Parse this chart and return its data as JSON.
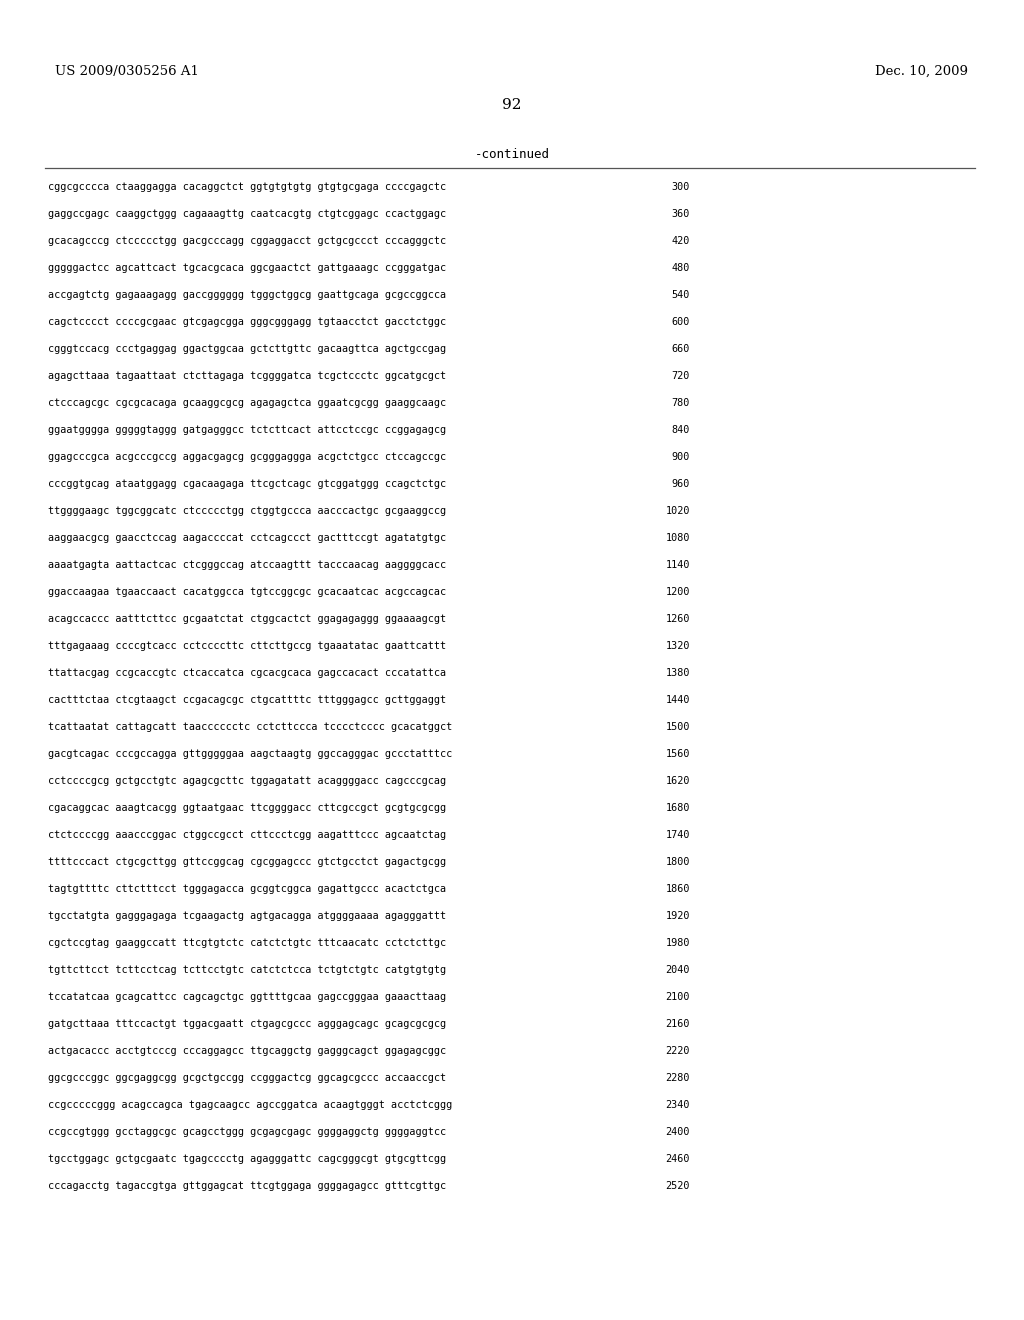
{
  "patent_number": "US 2009/0305256 A1",
  "date": "Dec. 10, 2009",
  "page_number": "92",
  "continued_label": "-continued",
  "background_color": "#ffffff",
  "text_color": "#000000",
  "sequence_lines": [
    [
      "cggcgcccca ctaaggagga cacaggctct ggtgtgtgtg gtgtgcgaga ccccgagctc",
      "300"
    ],
    [
      "gaggccgagc caaggctggg cagaaagttg caatcacgtg ctgtcggagc ccactggagc",
      "360"
    ],
    [
      "gcacagcccg ctccccctgg gacgcccagg cggaggacct gctgcgccct cccagggctc",
      "420"
    ],
    [
      "gggggactcc agcattcact tgcacgcaca ggcgaactct gattgaaagc ccgggatgac",
      "480"
    ],
    [
      "accgagtctg gagaaagagg gaccgggggg tgggctggcg gaattgcaga gcgccggcca",
      "540"
    ],
    [
      "cagctcccct ccccgcgaac gtcgagcgga gggcgggagg tgtaacctct gacctctggc",
      "600"
    ],
    [
      "cgggtccacg ccctgaggag ggactggcaa gctcttgttc gacaagttca agctgccgag",
      "660"
    ],
    [
      "agagcttaaa tagaattaat ctcttagaga tcggggatca tcgctccctc ggcatgcgct",
      "720"
    ],
    [
      "ctcccagcgc cgcgcacaga gcaaggcgcg agagagctca ggaatcgcgg gaaggcaagc",
      "780"
    ],
    [
      "ggaatgggga gggggtaggg gatgagggcc tctcttcact attcctccgc ccggagagcg",
      "840"
    ],
    [
      "ggagcccgca acgcccgccg aggacgagcg gcgggaggga acgctctgcc ctccagccgc",
      "900"
    ],
    [
      "cccggtgcag ataatggagg cgacaagaga ttcgctcagc gtcggatggg ccagctctgc",
      "960"
    ],
    [
      "ttggggaagc tggcggcatc ctccccctgg ctggtgccca aacccactgc gcgaaggccg",
      "1020"
    ],
    [
      "aaggaacgcg gaacctccag aagaccccat cctcagccct gactttccgt agatatgtgc",
      "1080"
    ],
    [
      "aaaatgagta aattactcac ctcgggccag atccaagttt tacccaacag aaggggcacc",
      "1140"
    ],
    [
      "ggaccaagaa tgaaccaact cacatggcca tgtccggcgc gcacaatcac acgccagcac",
      "1200"
    ],
    [
      "acagccaccc aatttcttcc gcgaatctat ctggcactct ggagagaggg ggaaaagcgt",
      "1260"
    ],
    [
      "tttgagaaag ccccgtcacc cctccccttc cttcttgccg tgaaatatac gaattcattt",
      "1320"
    ],
    [
      "ttattacgag ccgcaccgtc ctcaccatca cgcacgcaca gagccacact cccatattca",
      "1380"
    ],
    [
      "cactttctaa ctcgtaagct ccgacagcgc ctgcattttc tttgggagcc gcttggaggt",
      "1440"
    ],
    [
      "tcattaatat cattagcatt taacccccctc cctcttccca tcccctcccc gcacatggct",
      "1500"
    ],
    [
      "gacgtcagac cccgccagga gttgggggaa aagctaagtg ggccagggac gccctatttcc",
      "1560"
    ],
    [
      "cctccccgcg gctgcctgtc agagcgcttc tggagatatt acaggggacc cagcccgcag",
      "1620"
    ],
    [
      "cgacaggcac aaagtcacgg ggtaatgaac ttcggggacc cttcgccgct gcgtgcgcgg",
      "1680"
    ],
    [
      "ctctccccgg aaacccggac ctggccgcct cttccctcgg aagatttccc agcaatctag",
      "1740"
    ],
    [
      "ttttcccact ctgcgcttgg gttccggcag cgcggagccc gtctgcctct gagactgcgg",
      "1800"
    ],
    [
      "tagtgttttc cttctttcct tgggagacca gcggtcggca gagattgccc acactctgca",
      "1860"
    ],
    [
      "tgcctatgta gagggagaga tcgaagactg agtgacagga atggggaaaa agagggattt",
      "1920"
    ],
    [
      "cgctccgtag gaaggccatt ttcgtgtctc catctctgtc tttcaacatc cctctcttgc",
      "1980"
    ],
    [
      "tgttcttcct tcttcctcag tcttcctgtc catctctcca tctgtctgtc catgtgtgtg",
      "2040"
    ],
    [
      "tccatatcaa gcagcattcc cagcagctgc ggttttgcaa gagccgggaa gaaacttaag",
      "2100"
    ],
    [
      "gatgcttaaa tttccactgt tggacgaatt ctgagcgccc agggagcagc gcagcgcgcg",
      "2160"
    ],
    [
      "actgacaccc acctgtcccg cccaggagcc ttgcaggctg gagggcagct ggagagcggc",
      "2220"
    ],
    [
      "ggcgcccggc ggcgaggcgg gcgctgccgg ccgggactcg ggcagcgccc accaaccgct",
      "2280"
    ],
    [
      "ccgcccccggg acagccagca tgagcaagcc agccggatca acaagtgggt acctctcggg",
      "2340"
    ],
    [
      "ccgccgtggg gcctaggcgc gcagcctggg gcgagcgagc ggggaggctg ggggaggtcc",
      "2400"
    ],
    [
      "tgcctggagc gctgcgaatc tgagcccctg agagggattc cagcgggcgt gtgcgttcgg",
      "2460"
    ],
    [
      "cccagacctg tagaccgtga gttggagcat ttcgtggaga ggggagagcc gtttcgttgc",
      "2520"
    ]
  ]
}
